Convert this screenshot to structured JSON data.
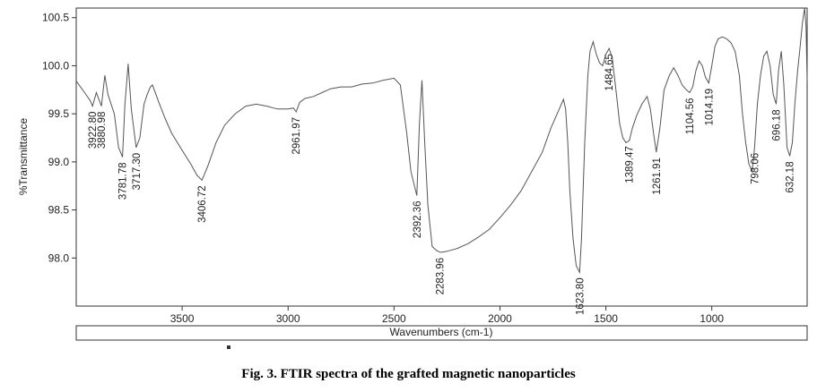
{
  "caption": "Fig. 3. FTIR spectra of the grafted magnetic nanoparticles",
  "chart_data": {
    "type": "line",
    "title": "",
    "xlabel": "Wavenumbers (cm-1)",
    "ylabel": "%Transmittance",
    "xlim": [
      4000,
      550
    ],
    "ylim": [
      97.5,
      100.6
    ],
    "x_reversed": true,
    "x_ticks": [
      3500,
      3000,
      2500,
      2000,
      1500,
      1000
    ],
    "y_ticks": [
      98.0,
      98.5,
      99.0,
      99.5,
      100.0,
      100.5
    ],
    "y_tick_labels": [
      "98.0",
      "98.5",
      "99.0",
      "99.5",
      "100.0",
      "100.5"
    ],
    "line_color": "#555555",
    "series": [
      {
        "x": [
          4000,
          3960,
          3935,
          3922.8,
          3905,
          3880.98,
          3865,
          3850,
          3820,
          3800,
          3781.78,
          3770,
          3755,
          3740,
          3717.3,
          3700,
          3680,
          3665,
          3650,
          3640,
          3610,
          3580,
          3550,
          3500,
          3460,
          3430,
          3406.72,
          3380,
          3340,
          3300,
          3250,
          3200,
          3150,
          3100,
          3050,
          3000,
          2975,
          2961.97,
          2945,
          2920,
          2880,
          2840,
          2800,
          2750,
          2700,
          2650,
          2600,
          2550,
          2500,
          2470,
          2440,
          2420,
          2392.36,
          2380,
          2368,
          2355,
          2340,
          2320,
          2300,
          2283.96,
          2270,
          2250,
          2200,
          2150,
          2100,
          2050,
          2000,
          1950,
          1900,
          1850,
          1800,
          1760,
          1720,
          1700,
          1690,
          1680,
          1670,
          1655,
          1640,
          1623.8,
          1615,
          1600,
          1585,
          1575,
          1560,
          1545,
          1530,
          1515,
          1500,
          1484.65,
          1470,
          1450,
          1435,
          1420,
          1405,
          1389.47,
          1375,
          1355,
          1330,
          1305,
          1290,
          1275,
          1261.91,
          1245,
          1225,
          1200,
          1180,
          1160,
          1140,
          1120,
          1104.56,
          1090,
          1075,
          1060,
          1045,
          1030,
          1014.19,
          1000,
          985,
          970,
          950,
          930,
          910,
          890,
          870,
          855,
          840,
          825,
          810,
          798.06,
          785,
          770,
          755,
          740,
          725,
          710,
          696.18,
          685,
          672,
          660,
          645,
          632.18,
          620,
          608,
          595,
          583,
          572,
          562,
          555,
          550
        ],
        "y": [
          99.84,
          99.72,
          99.64,
          99.58,
          99.72,
          99.58,
          99.9,
          99.7,
          99.5,
          99.15,
          99.05,
          99.6,
          100.02,
          99.55,
          99.15,
          99.25,
          99.6,
          99.7,
          99.78,
          99.8,
          99.62,
          99.45,
          99.3,
          99.12,
          98.98,
          98.86,
          98.81,
          98.95,
          99.2,
          99.38,
          99.5,
          99.58,
          99.6,
          99.58,
          99.55,
          99.55,
          99.56,
          99.52,
          99.62,
          99.66,
          99.68,
          99.72,
          99.76,
          99.78,
          99.78,
          99.81,
          99.82,
          99.85,
          99.87,
          99.8,
          99.3,
          98.9,
          98.65,
          99.4,
          99.85,
          99.2,
          98.55,
          98.12,
          98.08,
          98.06,
          98.06,
          98.07,
          98.1,
          98.15,
          98.22,
          98.3,
          98.42,
          98.55,
          98.7,
          98.9,
          99.1,
          99.35,
          99.55,
          99.65,
          99.55,
          99.2,
          98.7,
          98.2,
          97.92,
          97.85,
          98.2,
          99.2,
          99.9,
          100.15,
          100.25,
          100.12,
          100.03,
          100.0,
          100.12,
          100.18,
          100.08,
          99.7,
          99.4,
          99.25,
          99.2,
          99.22,
          99.35,
          99.48,
          99.6,
          99.68,
          99.55,
          99.3,
          99.1,
          99.35,
          99.75,
          99.9,
          99.98,
          99.9,
          99.8,
          99.75,
          99.72,
          99.78,
          99.95,
          100.05,
          100.0,
          99.88,
          99.82,
          100.0,
          100.2,
          100.28,
          100.3,
          100.28,
          100.24,
          100.15,
          99.9,
          99.5,
          99.2,
          98.98,
          98.9,
          99.15,
          99.6,
          99.9,
          100.1,
          100.15,
          100.0,
          99.7,
          99.6,
          99.95,
          100.15,
          99.8,
          99.15,
          99.06,
          99.2,
          99.6,
          99.95,
          100.2,
          100.45,
          100.6,
          100.4,
          99.85
        ]
      }
    ],
    "peak_labels": [
      {
        "x": 3922.8,
        "text": "3922.80"
      },
      {
        "x": 3880.98,
        "text": "3880.98"
      },
      {
        "x": 3781.78,
        "text": "3781.78"
      },
      {
        "x": 3717.3,
        "text": "3717.30"
      },
      {
        "x": 3406.72,
        "text": "3406.72"
      },
      {
        "x": 2961.97,
        "text": "2961.97"
      },
      {
        "x": 2392.36,
        "text": "2392.36"
      },
      {
        "x": 2283.96,
        "text": "2283.96"
      },
      {
        "x": 1623.8,
        "text": "1623.80"
      },
      {
        "x": 1484.65,
        "text": "1484.65"
      },
      {
        "x": 1389.47,
        "text": "1389.47"
      },
      {
        "x": 1261.91,
        "text": "1261.91"
      },
      {
        "x": 1104.56,
        "text": "1104.56"
      },
      {
        "x": 1014.19,
        "text": "1014.19"
      },
      {
        "x": 798.06,
        "text": "798.06"
      },
      {
        "x": 696.18,
        "text": "696.18"
      },
      {
        "x": 632.18,
        "text": "632.18"
      }
    ]
  }
}
